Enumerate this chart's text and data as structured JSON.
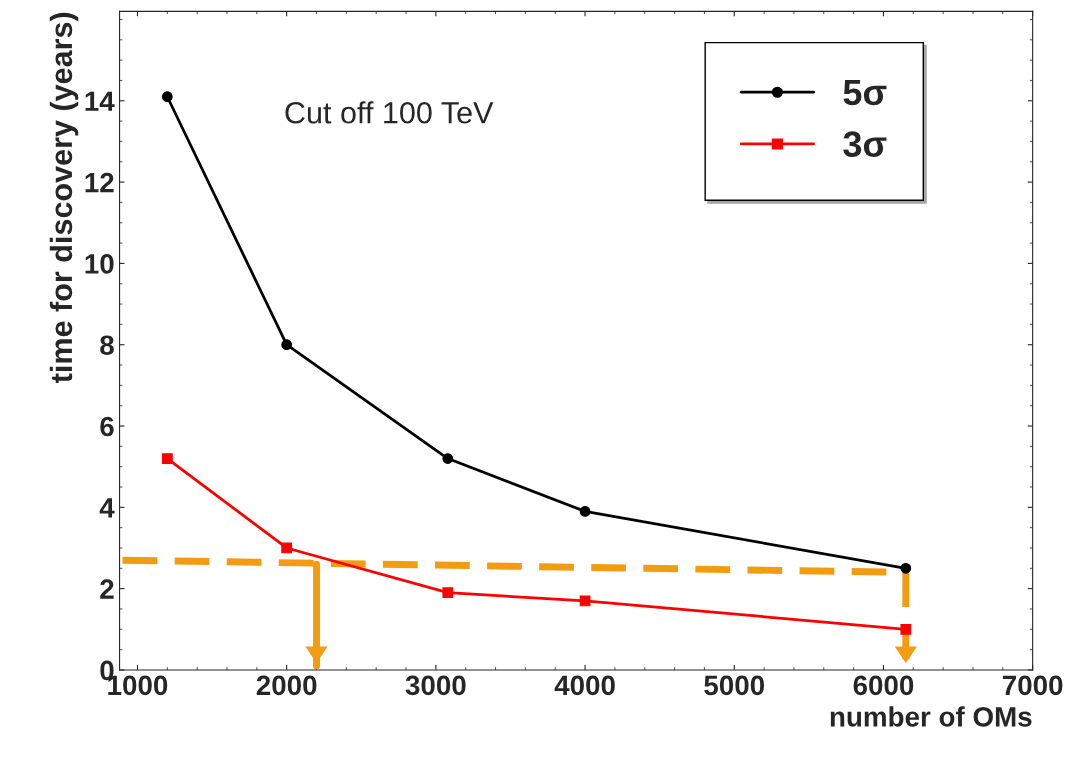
{
  "chart_data": {
    "type": "line",
    "xlabel": "number of OMs",
    "ylabel": "time for discovery (years)",
    "xlim": [
      880,
      7000
    ],
    "ylim": [
      0,
      16.2
    ],
    "xticks": [
      1000,
      2000,
      3000,
      4000,
      5000,
      6000,
      7000
    ],
    "yticks": [
      0,
      2,
      4,
      6,
      8,
      10,
      12,
      14
    ],
    "annotations": [
      "Cut off 100 TeV"
    ],
    "legend": "top right",
    "grid": false,
    "series": [
      {
        "name": "5σ",
        "color": "#000000",
        "marker": "circle",
        "x": [
          1200,
          2000,
          3080,
          4000,
          6150
        ],
        "values": [
          14.1,
          8.0,
          5.2,
          3.9,
          2.5
        ]
      },
      {
        "name": "3σ",
        "color": "#ff0000",
        "marker": "square",
        "x": [
          1200,
          2000,
          3080,
          4000,
          6150
        ],
        "values": [
          5.2,
          3.0,
          1.9,
          1.7,
          1.0
        ]
      },
      {
        "color": "#f39c12",
        "marker": "none",
        "line_style": "dashed",
        "x": [
          900,
          6150
        ],
        "values": [
          2.7,
          2.4
        ]
      },
      {
        "color": "#f39c12",
        "marker": "none",
        "line_style": "solid",
        "x": [
          2200,
          2200
        ],
        "values": [
          2.6,
          0.1
        ]
      },
      {
        "color": "#f39c12",
        "marker": "none",
        "line_style": "dashed",
        "x": [
          6150,
          6150
        ],
        "values": [
          2.4,
          0.1
        ]
      }
    ]
  }
}
